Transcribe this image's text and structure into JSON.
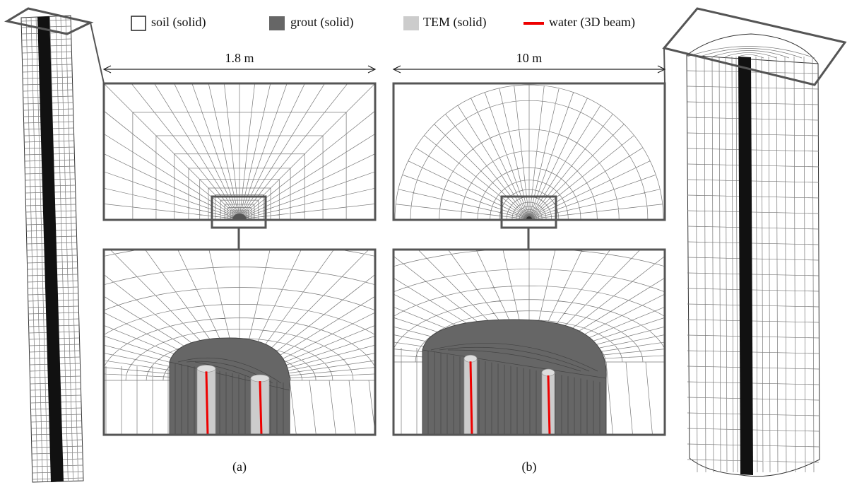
{
  "legend": {
    "items": [
      "soil (solid)",
      "grout (solid)",
      "TEM (solid)",
      "water (3D beam)"
    ]
  },
  "dimensions": [
    "1.8 m",
    "10 m"
  ],
  "captions": [
    "(a)",
    "(b)"
  ]
}
